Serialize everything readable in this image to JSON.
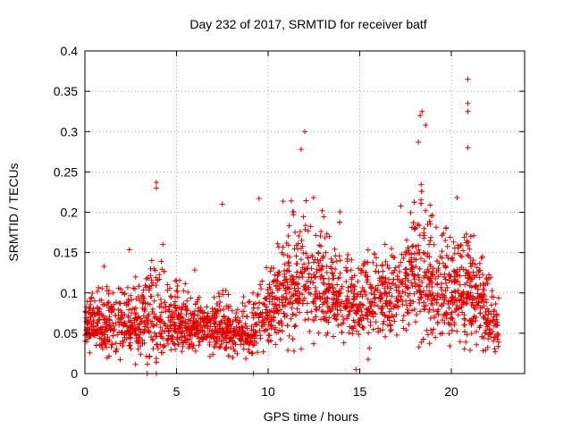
{
  "chart_data": {
    "type": "scatter",
    "title": "Day 232 of 2017, SRMTID for receiver batf",
    "xlabel": "GPS time / hours",
    "ylabel": "SRMTID / TECUs",
    "xlim": [
      0,
      24
    ],
    "ylim": [
      0,
      0.4
    ],
    "xticks": [
      0,
      5,
      10,
      15,
      20
    ],
    "xtick_labels": [
      "0",
      "5",
      "10",
      "15",
      "20"
    ],
    "yticks": [
      0,
      0.05,
      0.1,
      0.15,
      0.2,
      0.25,
      0.3,
      0.35,
      0.4
    ],
    "ytick_labels": [
      "0",
      "0.05",
      "0.1",
      "0.15",
      "0.2",
      "0.25",
      "0.3",
      "0.35",
      "0.4"
    ],
    "grid": true,
    "marker": "plus",
    "marker_color": "#e00000",
    "series": [
      {
        "name": "batf",
        "points_sampled": true,
        "x_range": [
          0.0,
          22.6
        ],
        "envelope": [
          {
            "x": 0,
            "mean": 0.06,
            "spread": 0.04
          },
          {
            "x": 2,
            "mean": 0.06,
            "spread": 0.05
          },
          {
            "x": 3.8,
            "mean": 0.07,
            "spread": 0.08
          },
          {
            "x": 5,
            "mean": 0.06,
            "spread": 0.05
          },
          {
            "x": 7,
            "mean": 0.055,
            "spread": 0.04
          },
          {
            "x": 9,
            "mean": 0.05,
            "spread": 0.04
          },
          {
            "x": 10.5,
            "mean": 0.09,
            "spread": 0.07
          },
          {
            "x": 12,
            "mean": 0.12,
            "spread": 0.1
          },
          {
            "x": 13,
            "mean": 0.1,
            "spread": 0.08
          },
          {
            "x": 15,
            "mean": 0.085,
            "spread": 0.06
          },
          {
            "x": 17,
            "mean": 0.09,
            "spread": 0.07
          },
          {
            "x": 18.3,
            "mean": 0.12,
            "spread": 0.12
          },
          {
            "x": 19.5,
            "mean": 0.1,
            "spread": 0.08
          },
          {
            "x": 21,
            "mean": 0.1,
            "spread": 0.1
          },
          {
            "x": 22.6,
            "mean": 0.05,
            "spread": 0.03
          }
        ],
        "outliers": [
          {
            "x": 20.9,
            "y": 0.365
          },
          {
            "x": 20.9,
            "y": 0.335
          },
          {
            "x": 20.9,
            "y": 0.325
          },
          {
            "x": 18.4,
            "y": 0.325
          },
          {
            "x": 18.3,
            "y": 0.32
          },
          {
            "x": 12.0,
            "y": 0.3
          },
          {
            "x": 18.6,
            "y": 0.308
          },
          {
            "x": 18.2,
            "y": 0.287
          },
          {
            "x": 20.9,
            "y": 0.28
          },
          {
            "x": 11.8,
            "y": 0.278
          },
          {
            "x": 3.9,
            "y": 0.237
          },
          {
            "x": 3.9,
            "y": 0.23
          },
          {
            "x": 7.5,
            "y": 0.21
          },
          {
            "x": 9.5,
            "y": 0.217
          },
          {
            "x": 14.8,
            "y": 0.005
          },
          {
            "x": 3.4,
            "y": 0.0
          },
          {
            "x": 3.9,
            "y": 0.0
          },
          {
            "x": 9.2,
            "y": 0.0
          }
        ]
      }
    ]
  }
}
